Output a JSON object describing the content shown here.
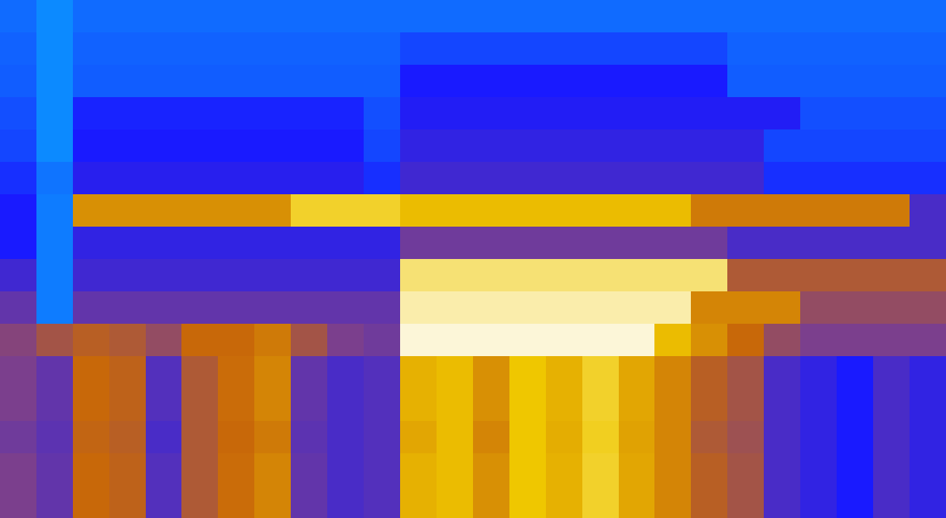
{
  "chart_data": {
    "type": "heatmap",
    "tick_labels": false,
    "clim": [
      0,
      1
    ],
    "cells": [
      [
        0.12,
        0.05,
        0.12,
        0.12,
        0.12,
        0.12,
        0.12,
        0.12,
        0.12,
        0.12,
        0.12,
        0.12,
        0.12,
        0.12,
        0.12,
        0.12,
        0.12,
        0.12,
        0.12,
        0.12,
        0.12,
        0.12,
        0.12,
        0.12,
        0.12,
        0.12
      ],
      [
        0.14,
        0.05,
        0.14,
        0.14,
        0.14,
        0.14,
        0.14,
        0.14,
        0.14,
        0.14,
        0.14,
        0.2,
        0.2,
        0.2,
        0.2,
        0.2,
        0.2,
        0.2,
        0.2,
        0.2,
        0.14,
        0.14,
        0.14,
        0.14,
        0.14,
        0.14
      ],
      [
        0.15,
        0.05,
        0.15,
        0.15,
        0.15,
        0.15,
        0.15,
        0.15,
        0.15,
        0.15,
        0.15,
        0.3,
        0.3,
        0.3,
        0.3,
        0.3,
        0.3,
        0.3,
        0.3,
        0.3,
        0.15,
        0.15,
        0.15,
        0.15,
        0.15,
        0.15
      ],
      [
        0.18,
        0.05,
        0.28,
        0.28,
        0.28,
        0.28,
        0.28,
        0.28,
        0.28,
        0.28,
        0.18,
        0.32,
        0.32,
        0.32,
        0.32,
        0.32,
        0.32,
        0.32,
        0.32,
        0.32,
        0.32,
        0.32,
        0.18,
        0.18,
        0.18,
        0.18
      ],
      [
        0.2,
        0.05,
        0.3,
        0.3,
        0.3,
        0.3,
        0.3,
        0.3,
        0.3,
        0.3,
        0.2,
        0.35,
        0.35,
        0.35,
        0.35,
        0.35,
        0.35,
        0.35,
        0.35,
        0.35,
        0.35,
        0.2,
        0.2,
        0.2,
        0.2,
        0.2
      ],
      [
        0.25,
        0.1,
        0.33,
        0.33,
        0.33,
        0.33,
        0.33,
        0.33,
        0.33,
        0.33,
        0.25,
        0.38,
        0.38,
        0.38,
        0.38,
        0.38,
        0.38,
        0.38,
        0.38,
        0.38,
        0.38,
        0.25,
        0.25,
        0.25,
        0.25,
        0.25
      ],
      [
        0.3,
        0.08,
        0.72,
        0.72,
        0.72,
        0.72,
        0.72,
        0.72,
        0.85,
        0.85,
        0.85,
        0.8,
        0.8,
        0.8,
        0.8,
        0.8,
        0.8,
        0.8,
        0.8,
        0.68,
        0.68,
        0.68,
        0.68,
        0.68,
        0.68,
        0.4
      ],
      [
        0.3,
        0.08,
        0.35,
        0.35,
        0.35,
        0.35,
        0.35,
        0.35,
        0.35,
        0.35,
        0.35,
        0.48,
        0.48,
        0.48,
        0.48,
        0.48,
        0.48,
        0.48,
        0.48,
        0.48,
        0.4,
        0.4,
        0.4,
        0.4,
        0.4,
        0.4
      ],
      [
        0.38,
        0.08,
        0.38,
        0.38,
        0.38,
        0.38,
        0.38,
        0.38,
        0.38,
        0.38,
        0.38,
        0.9,
        0.9,
        0.9,
        0.9,
        0.9,
        0.9,
        0.9,
        0.9,
        0.9,
        0.6,
        0.6,
        0.6,
        0.6,
        0.6,
        0.6
      ],
      [
        0.45,
        0.08,
        0.45,
        0.45,
        0.45,
        0.45,
        0.45,
        0.45,
        0.45,
        0.45,
        0.45,
        0.94,
        0.94,
        0.94,
        0.94,
        0.94,
        0.94,
        0.94,
        0.94,
        0.7,
        0.7,
        0.7,
        0.55,
        0.55,
        0.55,
        0.55
      ],
      [
        0.52,
        0.58,
        0.62,
        0.6,
        0.55,
        0.65,
        0.65,
        0.68,
        0.58,
        0.5,
        0.48,
        0.97,
        0.97,
        0.97,
        0.97,
        0.97,
        0.97,
        0.97,
        0.8,
        0.72,
        0.65,
        0.55,
        0.5,
        0.5,
        0.5,
        0.5
      ],
      [
        0.5,
        0.45,
        0.65,
        0.63,
        0.42,
        0.6,
        0.66,
        0.7,
        0.45,
        0.4,
        0.42,
        0.78,
        0.8,
        0.72,
        0.82,
        0.78,
        0.85,
        0.76,
        0.7,
        0.62,
        0.58,
        0.4,
        0.35,
        0.3,
        0.4,
        0.35
      ],
      [
        0.5,
        0.45,
        0.65,
        0.63,
        0.42,
        0.6,
        0.66,
        0.7,
        0.45,
        0.4,
        0.42,
        0.78,
        0.8,
        0.72,
        0.82,
        0.78,
        0.85,
        0.76,
        0.7,
        0.62,
        0.58,
        0.4,
        0.35,
        0.3,
        0.4,
        0.35
      ],
      [
        0.48,
        0.44,
        0.64,
        0.62,
        0.4,
        0.6,
        0.65,
        0.68,
        0.44,
        0.4,
        0.42,
        0.76,
        0.8,
        0.7,
        0.82,
        0.77,
        0.84,
        0.75,
        0.7,
        0.6,
        0.57,
        0.4,
        0.35,
        0.3,
        0.4,
        0.35
      ],
      [
        0.5,
        0.45,
        0.65,
        0.63,
        0.42,
        0.6,
        0.66,
        0.7,
        0.45,
        0.4,
        0.42,
        0.78,
        0.8,
        0.72,
        0.82,
        0.78,
        0.85,
        0.76,
        0.7,
        0.62,
        0.58,
        0.4,
        0.35,
        0.3,
        0.4,
        0.35
      ],
      [
        0.5,
        0.45,
        0.65,
        0.63,
        0.42,
        0.6,
        0.66,
        0.7,
        0.45,
        0.4,
        0.42,
        0.78,
        0.8,
        0.72,
        0.82,
        0.78,
        0.85,
        0.76,
        0.7,
        0.62,
        0.58,
        0.4,
        0.35,
        0.3,
        0.4,
        0.35
      ]
    ]
  }
}
